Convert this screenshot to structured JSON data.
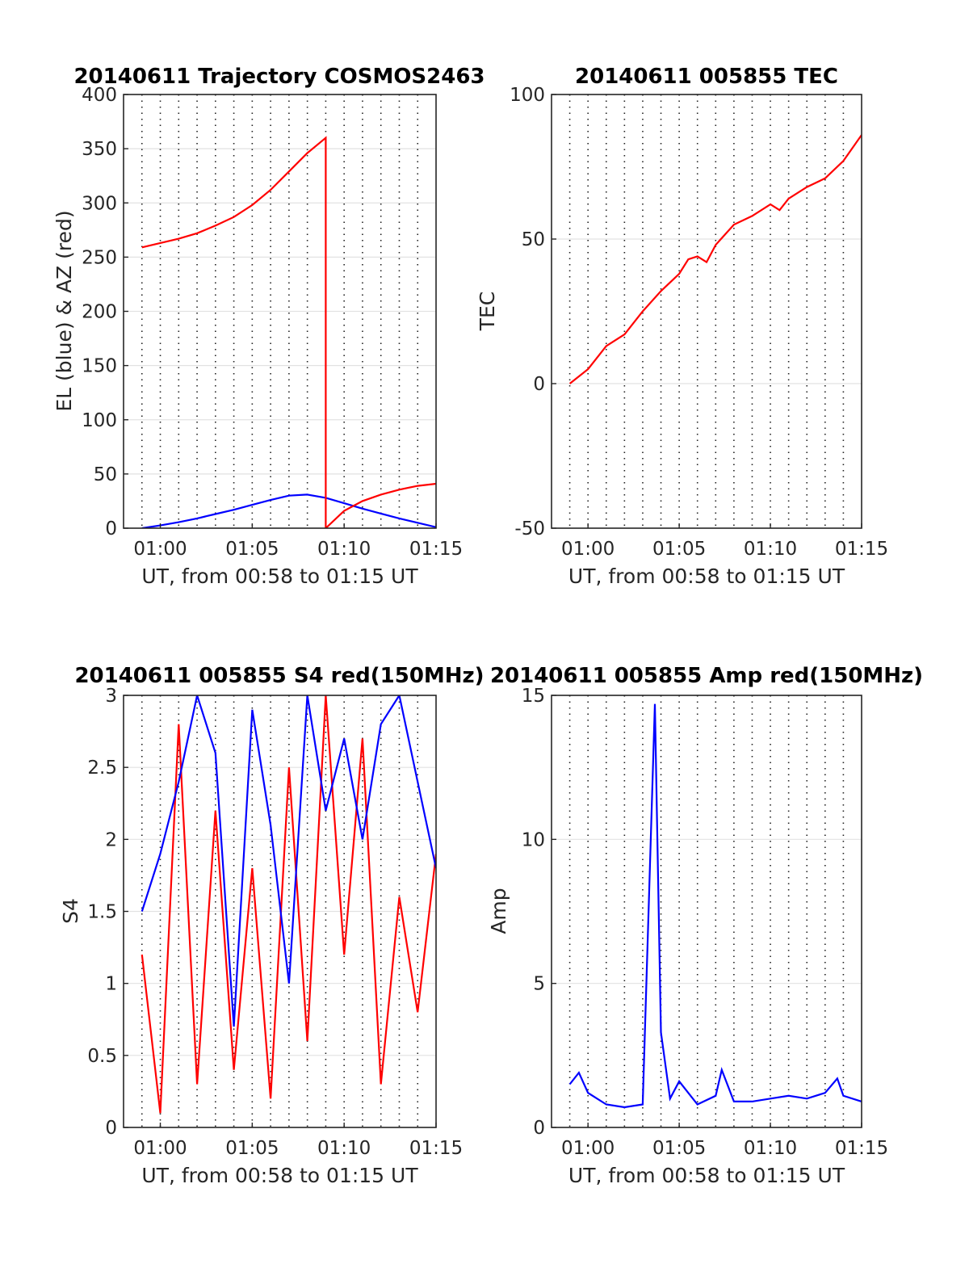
{
  "figure": {
    "date": "20140611",
    "x_tick_labels": [
      "01:00",
      "01:05",
      "01:10",
      "01:15"
    ]
  },
  "chart_data": [
    {
      "type": "line",
      "title": "20140611 Trajectory COSMOS2463",
      "xlabel": "UT, from 00:58 to 01:15 UT",
      "ylabel": "EL (blue) & AZ (red)",
      "xlim": [
        "00:58",
        "01:15"
      ],
      "ylim": [
        0,
        400
      ],
      "yticks": [
        0,
        50,
        100,
        150,
        200,
        250,
        300,
        350,
        400
      ],
      "grid": "dotted vertical every minute, light horizontal",
      "series": [
        {
          "color": "#0000ff",
          "x": [
            "00:59",
            "01:00",
            "01:01",
            "01:02",
            "01:03",
            "01:04",
            "01:05",
            "01:06",
            "01:07",
            "01:08",
            "01:09",
            "01:10",
            "01:11",
            "01:12",
            "01:13",
            "01:14",
            "01:15"
          ],
          "values": [
            0,
            2.5,
            5.5,
            9,
            13,
            17,
            21.5,
            26,
            30,
            31,
            28,
            23,
            18,
            13.5,
            9,
            5,
            1
          ]
        },
        {
          "color": "#ff0000",
          "x": [
            "00:59",
            "01:00",
            "01:01",
            "01:02",
            "01:03",
            "01:04",
            "01:05",
            "01:06",
            "01:07",
            "01:08",
            "01:09",
            "01:09",
            "01:10",
            "01:11",
            "01:12",
            "01:13",
            "01:14",
            "01:15"
          ],
          "values": [
            259,
            263,
            267,
            272,
            279,
            287,
            298,
            312,
            329,
            346,
            360,
            0,
            16,
            25,
            31,
            35.5,
            39,
            41
          ]
        }
      ]
    },
    {
      "type": "line",
      "title": "20140611 005855 TEC",
      "xlabel": "UT, from 00:58 to 01:15 UT",
      "ylabel": "TEC",
      "xlim": [
        "00:58",
        "01:15"
      ],
      "ylim": [
        -50,
        100
      ],
      "yticks": [
        -50,
        0,
        50,
        100
      ],
      "series": [
        {
          "color": "#ff0000",
          "x": [
            "00:59",
            "01:00",
            "01:01",
            "01:02",
            "01:03",
            "01:04",
            "01:05",
            "01:05:30",
            "01:06",
            "01:06:30",
            "01:07",
            "01:08",
            "01:09",
            "01:10",
            "01:10:30",
            "01:11",
            "01:12",
            "01:13",
            "01:14",
            "01:15"
          ],
          "values": [
            0,
            5,
            13,
            17,
            25,
            32,
            38,
            43,
            44,
            42,
            48,
            55,
            58,
            62,
            60,
            64,
            68,
            71,
            77,
            86
          ]
        }
      ]
    },
    {
      "type": "line",
      "title": "20140611 005855 S4 red(150MHz)",
      "xlabel": "UT, from 00:58 to 01:15 UT",
      "ylabel": "S4",
      "xlim": [
        "00:58",
        "01:15"
      ],
      "ylim": [
        0,
        3
      ],
      "yticks": [
        0,
        0.5,
        1,
        1.5,
        2,
        2.5,
        3
      ],
      "series": [
        {
          "color": "#ff0000",
          "x": [
            "00:59",
            "01:00",
            "01:01",
            "01:02",
            "01:03",
            "01:04",
            "01:05",
            "01:06",
            "01:07",
            "01:08",
            "01:09",
            "01:10",
            "01:11",
            "01:12",
            "01:13",
            "01:14",
            "01:15"
          ],
          "values": [
            1.2,
            0.1,
            2.8,
            0.3,
            2.2,
            0.4,
            1.8,
            0.2,
            2.5,
            0.6,
            3.0,
            1.2,
            2.7,
            0.3,
            1.6,
            0.8,
            1.9
          ]
        },
        {
          "color": "#0000ff",
          "x": [
            "00:59",
            "01:00",
            "01:01",
            "01:02",
            "01:03",
            "01:04",
            "01:05",
            "01:06",
            "01:07",
            "01:08",
            "01:09",
            "01:10",
            "01:11",
            "01:12",
            "01:13",
            "01:14",
            "01:15"
          ],
          "values": [
            1.5,
            1.9,
            2.4,
            3.0,
            2.6,
            0.7,
            2.9,
            2.1,
            1.0,
            3.0,
            2.2,
            2.7,
            2.0,
            2.8,
            3.0,
            2.4,
            1.8
          ]
        }
      ]
    },
    {
      "type": "line",
      "title": "20140611 005855 Amp red(150MHz)",
      "xlabel": "UT, from 00:58 to 01:15 UT",
      "ylabel": "Amp",
      "xlim": [
        "00:58",
        "01:15"
      ],
      "ylim": [
        0,
        15
      ],
      "yticks": [
        0,
        5,
        10,
        15
      ],
      "series": [
        {
          "color": "#0000ff",
          "x": [
            "00:59",
            "00:59:30",
            "01:00",
            "01:01",
            "01:02",
            "01:03",
            "01:03:40",
            "01:04",
            "01:04:30",
            "01:05",
            "01:06",
            "01:07",
            "01:07:20",
            "01:08",
            "01:09",
            "01:10",
            "01:11",
            "01:12",
            "01:13",
            "01:13:40",
            "01:14",
            "01:15"
          ],
          "values": [
            1.5,
            1.9,
            1.2,
            0.8,
            0.7,
            0.8,
            14.7,
            3.3,
            1.0,
            1.6,
            0.8,
            1.1,
            2.0,
            0.9,
            0.9,
            1.0,
            1.1,
            1.0,
            1.2,
            1.7,
            1.1,
            0.9
          ]
        }
      ]
    }
  ]
}
